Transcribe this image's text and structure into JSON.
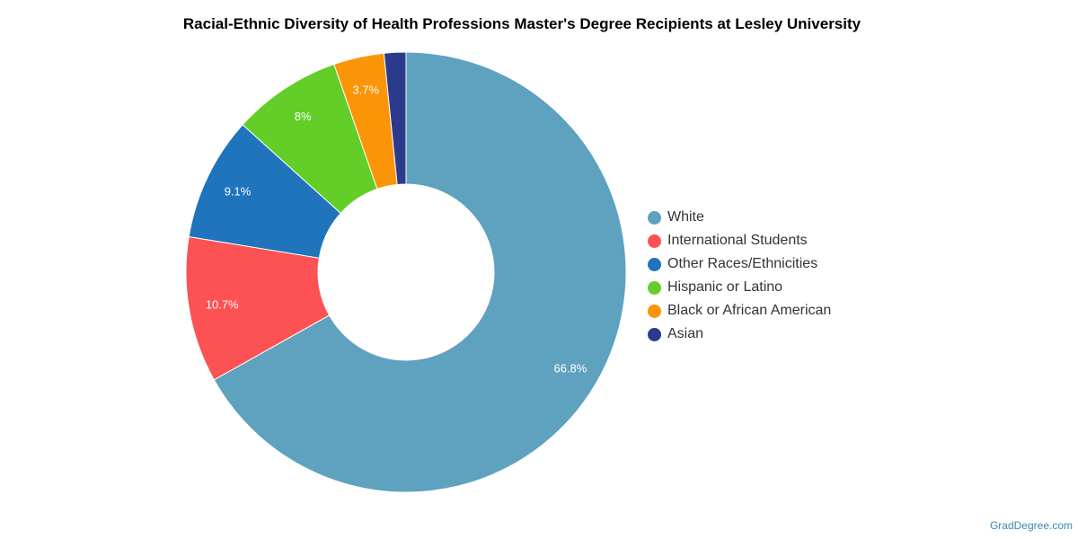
{
  "chart_data": {
    "type": "pie",
    "title": "Racial-Ethnic Diversity of Health Professions Master's Degree Recipients at Lesley University",
    "legend_position": "right",
    "slices": [
      {
        "label": "White",
        "value": 66.8,
        "display": "66.8%",
        "color": "#5ea2bf"
      },
      {
        "label": "International Students",
        "value": 10.7,
        "display": "10.7%",
        "color": "#fc5254"
      },
      {
        "label": "Other Races/Ethnicities",
        "value": 9.1,
        "display": "9.1%",
        "color": "#1f74bc"
      },
      {
        "label": "Hispanic or Latino",
        "value": 8.0,
        "display": "8%",
        "color": "#62ce27"
      },
      {
        "label": "Black or African American",
        "value": 3.7,
        "display": "3.7%",
        "color": "#fb9508"
      },
      {
        "label": "Asian",
        "value": 1.6,
        "display": "",
        "color": "#2c3a8c"
      }
    ]
  },
  "footer": {
    "source": "GradDegree.com"
  }
}
